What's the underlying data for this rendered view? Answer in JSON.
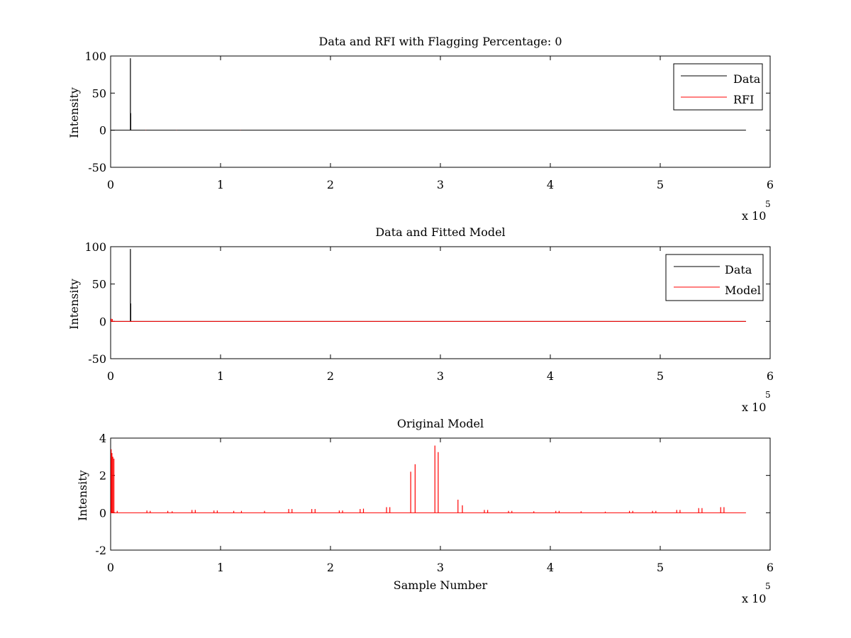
{
  "colors": {
    "data": "#000000",
    "rfi": "#ff0000",
    "axes": "#000000",
    "background": "#ffffff"
  },
  "chart_data": [
    {
      "type": "line",
      "title": "Data and RFI with Flagging Percentage: 0",
      "xlabel": "",
      "ylabel": "Intensity",
      "xlim": [
        0,
        600000
      ],
      "ylim": [
        -50,
        100
      ],
      "xticks": [
        0,
        1,
        2,
        3,
        4,
        5,
        6
      ],
      "yticks": [
        -50,
        0,
        50,
        100
      ],
      "x_multiplier": "x 10",
      "x_multiplier_exp": "5",
      "legend": {
        "position": "top-right",
        "entries": [
          "Data",
          "RFI"
        ]
      },
      "series": [
        {
          "name": "Data",
          "color": "#000000",
          "baseline": {
            "x_start": 0,
            "x_end": 578000,
            "y": 0
          },
          "spikes": [
            {
              "x": 18000,
              "y": 97
            },
            {
              "x": 18300,
              "y": 23
            }
          ]
        },
        {
          "name": "RFI",
          "color": "#ff0000",
          "baseline": null,
          "spikes": [
            {
              "x": 32000,
              "y": 0.4
            },
            {
              "x": 60000,
              "y": 0.3
            },
            {
              "x": 118000,
              "y": 0.4
            }
          ]
        }
      ]
    },
    {
      "type": "line",
      "title": "Data and Fitted Model",
      "xlabel": "",
      "ylabel": "Intensity",
      "xlim": [
        0,
        600000
      ],
      "ylim": [
        -50,
        100
      ],
      "xticks": [
        0,
        1,
        2,
        3,
        4,
        5,
        6
      ],
      "yticks": [
        -50,
        0,
        50,
        100
      ],
      "x_multiplier": "x 10",
      "x_multiplier_exp": "5",
      "legend": {
        "position": "top-right",
        "entries": [
          "Data",
          "Model"
        ]
      },
      "series": [
        {
          "name": "Data",
          "color": "#000000",
          "baseline": {
            "x_start": 0,
            "x_end": 578000,
            "y": 0
          },
          "spikes": [
            {
              "x": 18000,
              "y": 97
            },
            {
              "x": 18300,
              "y": 24
            }
          ]
        },
        {
          "name": "Model",
          "color": "#ff0000",
          "baseline": {
            "x_start": 0,
            "x_end": 578000,
            "y": 0
          },
          "spikes": [
            {
              "x": 500,
              "y": 3.5
            },
            {
              "x": 1500,
              "y": 3.2
            }
          ]
        }
      ]
    },
    {
      "type": "line",
      "title": "Original Model",
      "xlabel": "Sample Number",
      "ylabel": "Intensity",
      "xlim": [
        0,
        600000
      ],
      "ylim": [
        -2,
        4
      ],
      "xticks": [
        0,
        1,
        2,
        3,
        4,
        5,
        6
      ],
      "yticks": [
        -2,
        0,
        2,
        4
      ],
      "x_multiplier": "x 10",
      "x_multiplier_exp": "5",
      "legend": null,
      "series": [
        {
          "color": "#ff0000",
          "baseline": {
            "x_start": 0,
            "x_end": 578000,
            "y": 0
          },
          "spikes": [
            {
              "x": 500,
              "y": 3.4
            },
            {
              "x": 1200,
              "y": 3.2
            },
            {
              "x": 2000,
              "y": 3.0
            },
            {
              "x": 3000,
              "y": 2.9
            },
            {
              "x": 6000,
              "y": 0.1
            },
            {
              "x": 33000,
              "y": 0.12
            },
            {
              "x": 36000,
              "y": 0.1
            },
            {
              "x": 52000,
              "y": 0.1
            },
            {
              "x": 56000,
              "y": 0.08
            },
            {
              "x": 74000,
              "y": 0.15
            },
            {
              "x": 77000,
              "y": 0.15
            },
            {
              "x": 94000,
              "y": 0.12
            },
            {
              "x": 97000,
              "y": 0.12
            },
            {
              "x": 112000,
              "y": 0.1
            },
            {
              "x": 119000,
              "y": 0.1
            },
            {
              "x": 140000,
              "y": 0.1
            },
            {
              "x": 162000,
              "y": 0.2
            },
            {
              "x": 165000,
              "y": 0.2
            },
            {
              "x": 183000,
              "y": 0.2
            },
            {
              "x": 186000,
              "y": 0.2
            },
            {
              "x": 208000,
              "y": 0.12
            },
            {
              "x": 211000,
              "y": 0.12
            },
            {
              "x": 227000,
              "y": 0.2
            },
            {
              "x": 230000,
              "y": 0.22
            },
            {
              "x": 251000,
              "y": 0.3
            },
            {
              "x": 254000,
              "y": 0.3
            },
            {
              "x": 273000,
              "y": 2.2
            },
            {
              "x": 277000,
              "y": 2.6
            },
            {
              "x": 295000,
              "y": 3.6
            },
            {
              "x": 298000,
              "y": 3.25
            },
            {
              "x": 316000,
              "y": 0.7
            },
            {
              "x": 320000,
              "y": 0.4
            },
            {
              "x": 340000,
              "y": 0.15
            },
            {
              "x": 343000,
              "y": 0.15
            },
            {
              "x": 362000,
              "y": 0.1
            },
            {
              "x": 365000,
              "y": 0.1
            },
            {
              "x": 385000,
              "y": 0.08
            },
            {
              "x": 405000,
              "y": 0.1
            },
            {
              "x": 408000,
              "y": 0.1
            },
            {
              "x": 428000,
              "y": 0.08
            },
            {
              "x": 450000,
              "y": 0.06
            },
            {
              "x": 472000,
              "y": 0.1
            },
            {
              "x": 475000,
              "y": 0.1
            },
            {
              "x": 493000,
              "y": 0.1
            },
            {
              "x": 496000,
              "y": 0.1
            },
            {
              "x": 515000,
              "y": 0.15
            },
            {
              "x": 518000,
              "y": 0.15
            },
            {
              "x": 535000,
              "y": 0.25
            },
            {
              "x": 538000,
              "y": 0.25
            },
            {
              "x": 555000,
              "y": 0.3
            },
            {
              "x": 558000,
              "y": 0.3
            }
          ]
        }
      ]
    }
  ]
}
